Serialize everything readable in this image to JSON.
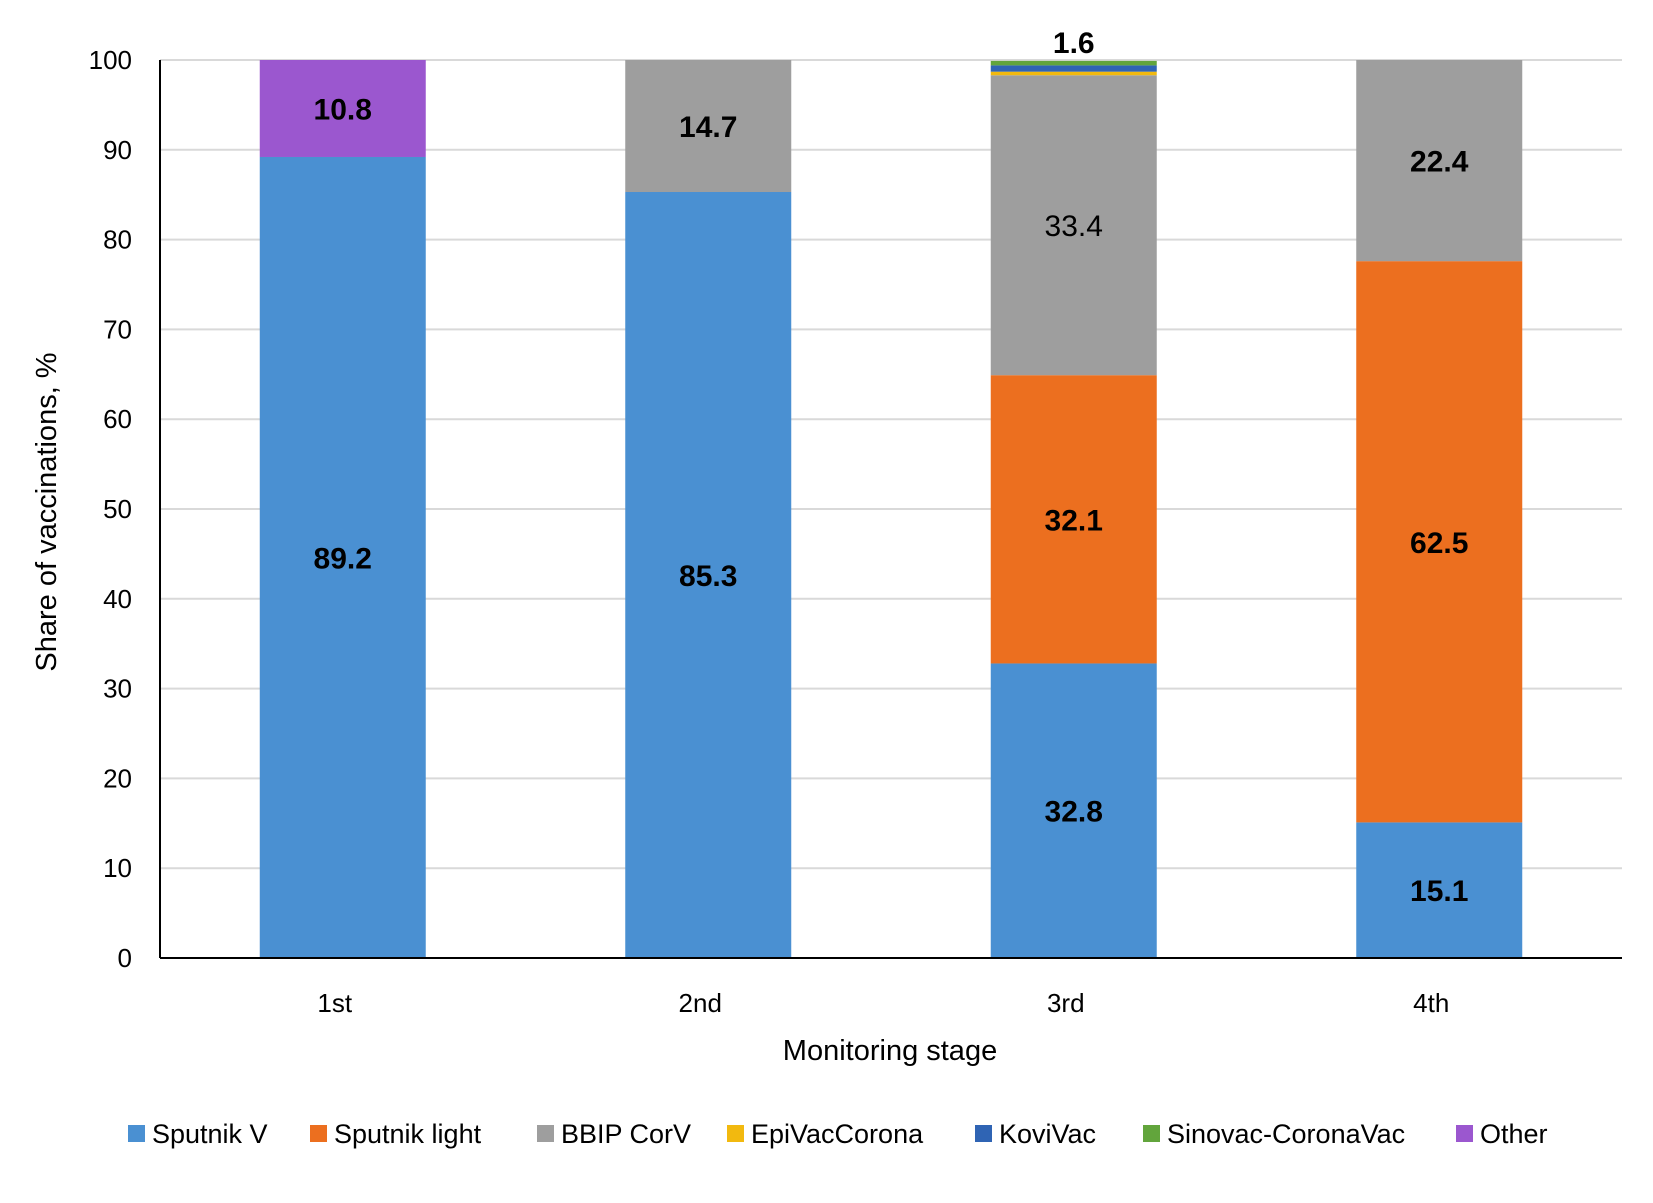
{
  "chart_data": {
    "type": "bar",
    "stacked": true,
    "categories": [
      "1st",
      "2nd",
      "3rd",
      "4th"
    ],
    "xlabel": "Monitoring stage",
    "ylabel": "Share of vaccinations, %",
    "ylim": [
      0,
      100
    ],
    "yticks": [
      0,
      10,
      20,
      30,
      40,
      50,
      60,
      70,
      80,
      90,
      100
    ],
    "grid": "horizontal",
    "legend_position": "bottom",
    "series": [
      {
        "name": "Sputnik V",
        "color": "#4A90D2",
        "values": [
          89.2,
          85.3,
          32.8,
          15.1
        ]
      },
      {
        "name": "Sputnik light",
        "color": "#EC6F1F",
        "values": [
          0,
          0,
          32.1,
          62.5
        ]
      },
      {
        "name": "BBIP CorV",
        "color": "#9E9E9E",
        "values": [
          0,
          14.7,
          33.4,
          22.4
        ]
      },
      {
        "name": "EpiVacCorona",
        "color": "#F2B90F",
        "values": [
          0,
          0,
          0.4,
          0
        ]
      },
      {
        "name": "KoviVac",
        "color": "#2F64B4",
        "values": [
          0,
          0,
          0.7,
          0
        ]
      },
      {
        "name": "Sinovac-CoronaVac",
        "color": "#62A53C",
        "values": [
          0,
          0,
          0.5,
          0
        ]
      },
      {
        "name": "Other",
        "color": "#9B57CF",
        "values": [
          10.8,
          0,
          0,
          0
        ]
      }
    ],
    "data_labels": [
      {
        "category": "1st",
        "value": 89.2,
        "text": "89.2",
        "bold": true
      },
      {
        "category": "1st",
        "value": 10.8,
        "text": "10.8",
        "bold": true
      },
      {
        "category": "2nd",
        "value": 85.3,
        "text": "85.3",
        "bold": true
      },
      {
        "category": "2nd",
        "value": 14.7,
        "text": "14.7",
        "bold": true
      },
      {
        "category": "3rd",
        "value": 32.8,
        "text": "32.8",
        "bold": true
      },
      {
        "category": "3rd",
        "value": 32.1,
        "text": "32.1",
        "bold": true
      },
      {
        "category": "3rd",
        "value": 33.4,
        "text": "33.4",
        "bold": false
      },
      {
        "category": "3rd",
        "value": 1.6,
        "text": "1.6",
        "bold": true
      },
      {
        "category": "4th",
        "value": 15.1,
        "text": "15.1",
        "bold": true
      },
      {
        "category": "4th",
        "value": 62.5,
        "text": "62.5",
        "bold": true
      },
      {
        "category": "4th",
        "value": 22.4,
        "text": "22.4",
        "bold": true
      }
    ]
  }
}
